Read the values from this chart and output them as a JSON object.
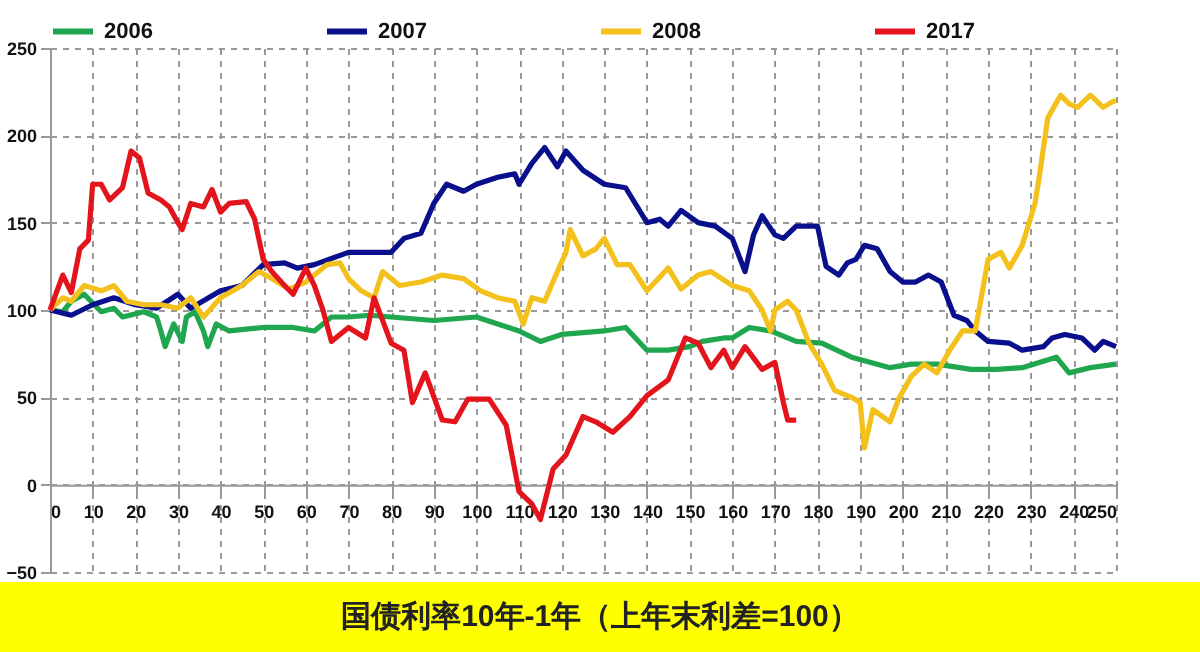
{
  "chart_data": {
    "type": "line",
    "title": "国债利率10年-1年（上年末利差=100）",
    "xlim": [
      0,
      250
    ],
    "xticks": [
      0,
      10,
      20,
      30,
      40,
      50,
      60,
      70,
      80,
      90,
      100,
      110,
      120,
      130,
      140,
      150,
      160,
      170,
      180,
      190,
      200,
      210,
      220,
      230,
      240,
      250
    ],
    "ylim": [
      -50,
      250
    ],
    "yticks": [
      -50,
      0,
      50,
      100,
      150,
      200,
      250
    ],
    "grid": true,
    "legend": "top",
    "line_style": "solid",
    "marker": "none",
    "series": [
      {
        "name": "2006",
        "color": "#1fa64e",
        "x": [
          0,
          3,
          5,
          8,
          12,
          15,
          17,
          22,
          25,
          26,
          27,
          29,
          31,
          32,
          34,
          36,
          37,
          39,
          42,
          50,
          57,
          62,
          66,
          70,
          75,
          80,
          90,
          100,
          105,
          110,
          115,
          120,
          130,
          135,
          140,
          145,
          150,
          153,
          158,
          160,
          164,
          169,
          175,
          181,
          188,
          197,
          202,
          208,
          216,
          222,
          228,
          236,
          239,
          244,
          250
        ],
        "values": [
          100,
          99,
          105,
          109,
          99,
          101,
          96,
          99,
          96,
          88,
          79,
          92,
          82,
          96,
          99,
          88,
          79,
          92,
          88,
          90,
          90,
          88,
          96,
          96,
          97,
          96,
          94,
          96,
          92,
          88,
          82,
          86,
          88,
          90,
          77,
          77,
          79,
          82,
          84,
          84,
          90,
          88,
          82,
          81,
          73,
          67,
          69,
          69,
          66,
          66,
          67,
          73,
          64,
          67,
          69
        ]
      },
      {
        "name": "2007",
        "color": "#0a0f8c",
        "x": [
          0,
          5,
          10,
          15,
          20,
          25,
          30,
          33,
          40,
          45,
          50,
          55,
          58,
          62,
          70,
          75,
          80,
          83,
          87,
          90,
          93,
          97,
          100,
          105,
          109,
          110,
          113,
          116,
          119,
          121,
          125,
          130,
          135,
          140,
          143,
          145,
          148,
          152,
          156,
          160,
          163,
          165,
          167,
          170,
          172,
          175,
          180,
          182,
          185,
          187,
          189,
          191,
          194,
          197,
          200,
          203,
          206,
          209,
          212,
          215,
          217,
          220,
          225,
          228,
          233,
          235,
          238,
          242,
          245,
          247,
          250
        ],
        "values": [
          100,
          97,
          103,
          107,
          103,
          101,
          109,
          101,
          111,
          114,
          126,
          127,
          124,
          126,
          133,
          133,
          133,
          141,
          144,
          161,
          172,
          168,
          172,
          176,
          178,
          172,
          184,
          193,
          182,
          191,
          180,
          172,
          170,
          150,
          152,
          148,
          157,
          150,
          148,
          141,
          122,
          143,
          154,
          143,
          141,
          148,
          148,
          125,
          120,
          127,
          129,
          137,
          135,
          122,
          116,
          116,
          120,
          116,
          97,
          94,
          88,
          82,
          81,
          77,
          79,
          84,
          86,
          84,
          77,
          82,
          79
        ]
      },
      {
        "name": "2008",
        "color": "#f4c01c",
        "x": [
          0,
          3,
          5,
          8,
          12,
          15,
          18,
          22,
          26,
          30,
          33,
          36,
          40,
          45,
          49,
          52,
          56,
          60,
          65,
          68,
          70,
          73,
          76,
          78,
          82,
          87,
          92,
          97,
          101,
          105,
          109,
          111,
          113,
          116,
          119,
          121,
          122,
          125,
          128,
          130,
          133,
          136,
          140,
          145,
          148,
          152,
          155,
          160,
          164,
          167,
          169,
          170,
          173,
          175,
          178,
          181,
          184,
          188,
          190,
          191,
          193,
          197,
          199,
          202,
          205,
          208,
          211,
          214,
          217,
          220,
          223,
          225,
          228,
          231,
          232,
          234,
          237,
          239,
          241,
          244,
          247,
          249,
          250
        ],
        "values": [
          100,
          107,
          105,
          114,
          111,
          114,
          105,
          103,
          103,
          101,
          107,
          96,
          107,
          114,
          122,
          118,
          112,
          116,
          126,
          127,
          118,
          111,
          107,
          122,
          114,
          116,
          120,
          118,
          111,
          107,
          105,
          92,
          107,
          105,
          122,
          133,
          146,
          131,
          135,
          141,
          126,
          126,
          111,
          124,
          112,
          120,
          122,
          114,
          111,
          100,
          88,
          100,
          105,
          100,
          81,
          69,
          54,
          50,
          47,
          21,
          43,
          36,
          49,
          62,
          69,
          64,
          77,
          88,
          88,
          129,
          133,
          124,
          137,
          161,
          176,
          210,
          223,
          218,
          216,
          223,
          216,
          219,
          220
        ]
      },
      {
        "name": "2017",
        "color": "#e3141b",
        "x": [
          0,
          3,
          5,
          7,
          9,
          10,
          12,
          14,
          17,
          19,
          21,
          23,
          26,
          28,
          30,
          31,
          33,
          36,
          38,
          40,
          42,
          46,
          48,
          50,
          52,
          55,
          57,
          60,
          62,
          64,
          66,
          70,
          74,
          76,
          80,
          83,
          85,
          88,
          92,
          95,
          98,
          103,
          107,
          110,
          113,
          115,
          118,
          121,
          125,
          128,
          132,
          136,
          140,
          145,
          149,
          152,
          155,
          158,
          160,
          163,
          167,
          170,
          172,
          173,
          175
        ],
        "values": [
          100,
          120,
          110,
          135,
          140,
          172,
          172,
          163,
          170,
          191,
          187,
          167,
          163,
          159,
          150,
          146,
          161,
          159,
          169,
          156,
          161,
          162,
          152,
          129,
          122,
          114,
          109,
          124,
          114,
          100,
          82,
          90,
          84,
          107,
          81,
          77,
          47,
          64,
          37,
          36,
          49,
          49,
          34,
          -4,
          -11,
          -20,
          9,
          17,
          39,
          36,
          30,
          39,
          51,
          60,
          84,
          81,
          67,
          77,
          67,
          79,
          66,
          70,
          47,
          37,
          37
        ]
      }
    ]
  }
}
